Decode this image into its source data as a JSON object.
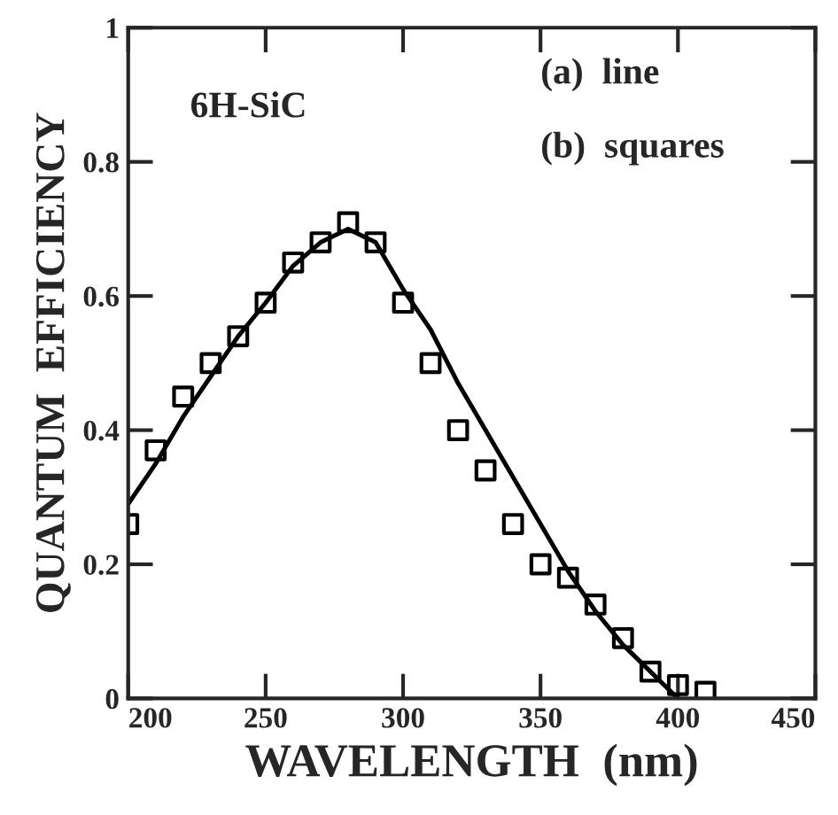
{
  "chart_data": {
    "type": "line",
    "xlabel": "WAVELENGTH  (nm)",
    "ylabel": "QUANTUM  EFFICIENCY",
    "annotations": [
      "6H-SiC",
      "(a)  line",
      "(b)  squares"
    ],
    "xlim": [
      200,
      450
    ],
    "xticks": [
      200,
      250,
      300,
      350,
      400,
      450
    ],
    "ylim": [
      0,
      1
    ],
    "yticks": [
      0,
      0.2,
      0.4,
      0.6,
      0.8,
      1
    ],
    "grid": false,
    "legend": false,
    "series": [
      {
        "color": "#000000",
        "marker": "none",
        "line_style": "solid",
        "x": [
          200,
          210,
          220,
          230,
          240,
          250,
          260,
          270,
          280,
          290,
          300,
          310,
          320,
          330,
          340,
          350,
          360,
          370,
          380,
          390,
          400
        ],
        "values": [
          0.29,
          0.35,
          0.42,
          0.48,
          0.54,
          0.59,
          0.645,
          0.68,
          0.7,
          0.68,
          0.61,
          0.55,
          0.47,
          0.4,
          0.33,
          0.26,
          0.19,
          0.13,
          0.08,
          0.04,
          0.0
        ]
      },
      {
        "type": "scatter",
        "color": "#000000",
        "marker": "square",
        "x": [
          200,
          210,
          220,
          230,
          240,
          250,
          260,
          270,
          280,
          290,
          300,
          310,
          320,
          330,
          340,
          350,
          360,
          370,
          380,
          390,
          400,
          410
        ],
        "values": [
          0.26,
          0.37,
          0.45,
          0.5,
          0.54,
          0.59,
          0.65,
          0.68,
          0.71,
          0.68,
          0.59,
          0.5,
          0.4,
          0.34,
          0.26,
          0.2,
          0.18,
          0.14,
          0.09,
          0.04,
          0.02,
          0.01
        ]
      }
    ]
  }
}
